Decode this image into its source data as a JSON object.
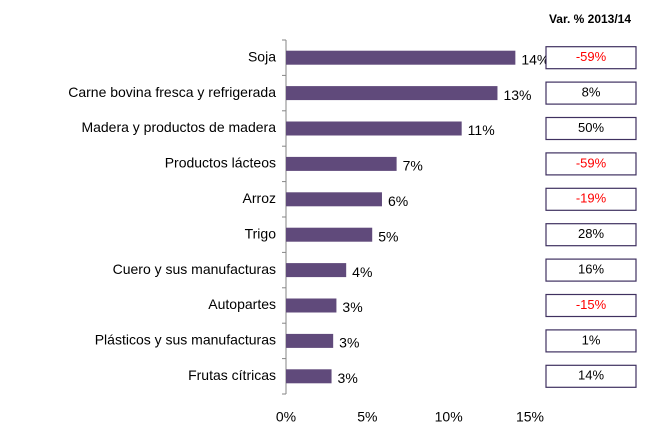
{
  "chart_data": {
    "type": "bar",
    "orientation": "horizontal",
    "categories": [
      "Soja",
      "Carne bovina fresca y refrigerada",
      "Madera y productos de madera",
      "Productos lácteos",
      "Arroz",
      "Trigo",
      "Cuero y sus manufacturas",
      "Autopartes",
      "Plásticos y sus manufacturas",
      "Frutas cítricas"
    ],
    "values": [
      14.1,
      13.0,
      10.8,
      6.8,
      5.9,
      5.3,
      3.7,
      3.1,
      2.9,
      2.8
    ],
    "value_labels": [
      "14%",
      "13%",
      "11%",
      "7%",
      "6%",
      "5%",
      "4%",
      "3%",
      "3%",
      "3%"
    ],
    "color": "#604a7b",
    "xlim": [
      0,
      15
    ],
    "xticks": [
      {
        "value": 0,
        "label": "0%"
      },
      {
        "value": 5,
        "label": "5%"
      },
      {
        "value": 10,
        "label": "10%"
      },
      {
        "value": 15,
        "label": "15%"
      }
    ],
    "variation": {
      "title": "Var. % 2013/14",
      "labels": [
        "-59%",
        "8%",
        "50%",
        "-59%",
        "-19%",
        "28%",
        "16%",
        "-15%",
        "1%",
        "14%"
      ],
      "colors": [
        "#ff0000",
        "#000000",
        "#000000",
        "#ff0000",
        "#ff0000",
        "#000000",
        "#000000",
        "#ff0000",
        "#000000",
        "#000000"
      ],
      "box_color": "#3f3160"
    }
  }
}
